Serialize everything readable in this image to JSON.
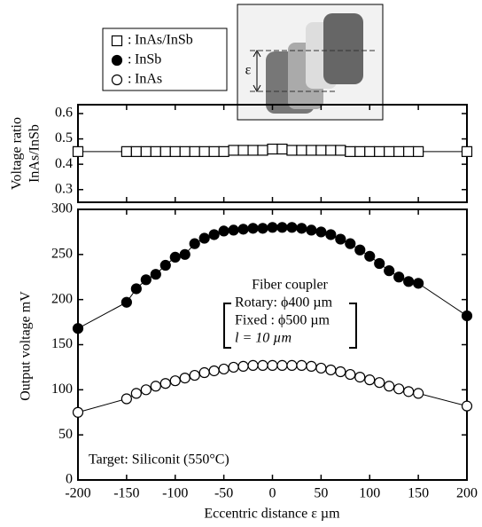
{
  "inset": {
    "label": "ε"
  },
  "chart_data": [
    {
      "type": "scatter-line",
      "ylabel": [
        "Voltage ratio",
        "InAs/InSb"
      ],
      "xlim": [
        -200,
        200
      ],
      "ylim": [
        0.25,
        0.635
      ],
      "yticks": [
        0.3,
        0.4,
        0.5,
        0.6
      ],
      "series": [
        {
          "name": "InAs/InSb",
          "marker": "square",
          "color": "#000000",
          "marker_fill": "#ffffff",
          "x": [
            -200,
            -150,
            -140,
            -130,
            -120,
            -110,
            -100,
            -90,
            -80,
            -70,
            -60,
            -50,
            -40,
            -30,
            -20,
            -10,
            0,
            10,
            20,
            30,
            40,
            50,
            60,
            70,
            80,
            90,
            100,
            110,
            120,
            130,
            140,
            150,
            200
          ],
          "values": [
            0.45,
            0.45,
            0.45,
            0.45,
            0.45,
            0.45,
            0.45,
            0.45,
            0.45,
            0.45,
            0.45,
            0.45,
            0.455,
            0.455,
            0.455,
            0.455,
            0.46,
            0.46,
            0.455,
            0.455,
            0.455,
            0.455,
            0.455,
            0.455,
            0.45,
            0.45,
            0.45,
            0.45,
            0.45,
            0.45,
            0.45,
            0.45,
            0.45
          ]
        }
      ]
    },
    {
      "type": "scatter-line",
      "xlabel": "Eccentric distance  ε  µm",
      "ylabel": "Output voltage  mV",
      "xlim": [
        -200,
        200
      ],
      "xticks": [
        -200,
        -150,
        -100,
        -50,
        0,
        50,
        100,
        150,
        200
      ],
      "ylim": [
        0,
        300
      ],
      "yticks": [
        0,
        50,
        100,
        150,
        200,
        250,
        300
      ],
      "annotations": [
        "Fiber coupler",
        "Rotary: ϕ400 µm",
        "Fixed : ϕ500 µm",
        "l = 10 µm",
        "Target: Siliconit (550°C)"
      ],
      "series": [
        {
          "name": "InSb",
          "marker": "circle",
          "color": "#000000",
          "marker_fill": "#000000",
          "x": [
            -200,
            -150,
            -140,
            -130,
            -120,
            -110,
            -100,
            -90,
            -80,
            -70,
            -60,
            -50,
            -40,
            -30,
            -20,
            -10,
            0,
            10,
            20,
            30,
            40,
            50,
            60,
            70,
            80,
            90,
            100,
            110,
            120,
            130,
            140,
            150,
            200
          ],
          "values": [
            168,
            197,
            212,
            222,
            228,
            238,
            247,
            250,
            262,
            268,
            272,
            276,
            277,
            278,
            279,
            279,
            280,
            280,
            280,
            279,
            277,
            275,
            272,
            267,
            262,
            255,
            248,
            240,
            232,
            225,
            220,
            218,
            182
          ]
        },
        {
          "name": "InAs",
          "marker": "circle",
          "color": "#000000",
          "marker_fill": "#ffffff",
          "x": [
            -200,
            -150,
            -140,
            -130,
            -120,
            -110,
            -100,
            -90,
            -80,
            -70,
            -60,
            -50,
            -40,
            -30,
            -20,
            -10,
            0,
            10,
            20,
            30,
            40,
            50,
            60,
            70,
            80,
            90,
            100,
            110,
            120,
            130,
            140,
            150,
            200
          ],
          "values": [
            75,
            90,
            96,
            100,
            104,
            107,
            110,
            113,
            116,
            119,
            121,
            123,
            125,
            126,
            127,
            127,
            127,
            127,
            127,
            127,
            126,
            124,
            122,
            120,
            117,
            114,
            111,
            108,
            104,
            101,
            98,
            96,
            82
          ]
        }
      ]
    }
  ]
}
